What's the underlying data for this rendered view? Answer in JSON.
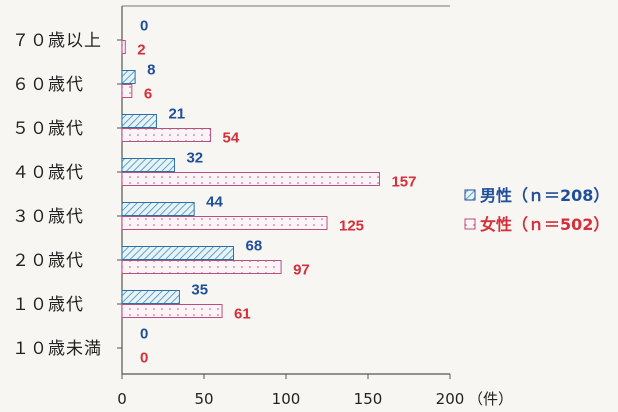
{
  "chart_data": {
    "type": "bar",
    "orientation": "horizontal",
    "categories": [
      "７０歳以上",
      "６０歳代",
      "５０歳代",
      "４０歳代",
      "３０歳代",
      "２０歳代",
      "１０歳代",
      "１０歳未満"
    ],
    "series": [
      {
        "name": "男性（ｎ＝208）",
        "values": [
          0,
          8,
          21,
          32,
          44,
          68,
          35,
          0
        ],
        "color": "#1f4e9a"
      },
      {
        "name": "女性（ｎ＝502）",
        "values": [
          2,
          6,
          54,
          157,
          125,
          97,
          61,
          0
        ],
        "color": "#d42f3a"
      }
    ],
    "x_ticks": [
      0,
      50,
      100,
      150,
      200
    ],
    "x_unit": "（件）",
    "xlim": [
      0,
      200
    ],
    "legend_position": "right",
    "grid": false
  }
}
